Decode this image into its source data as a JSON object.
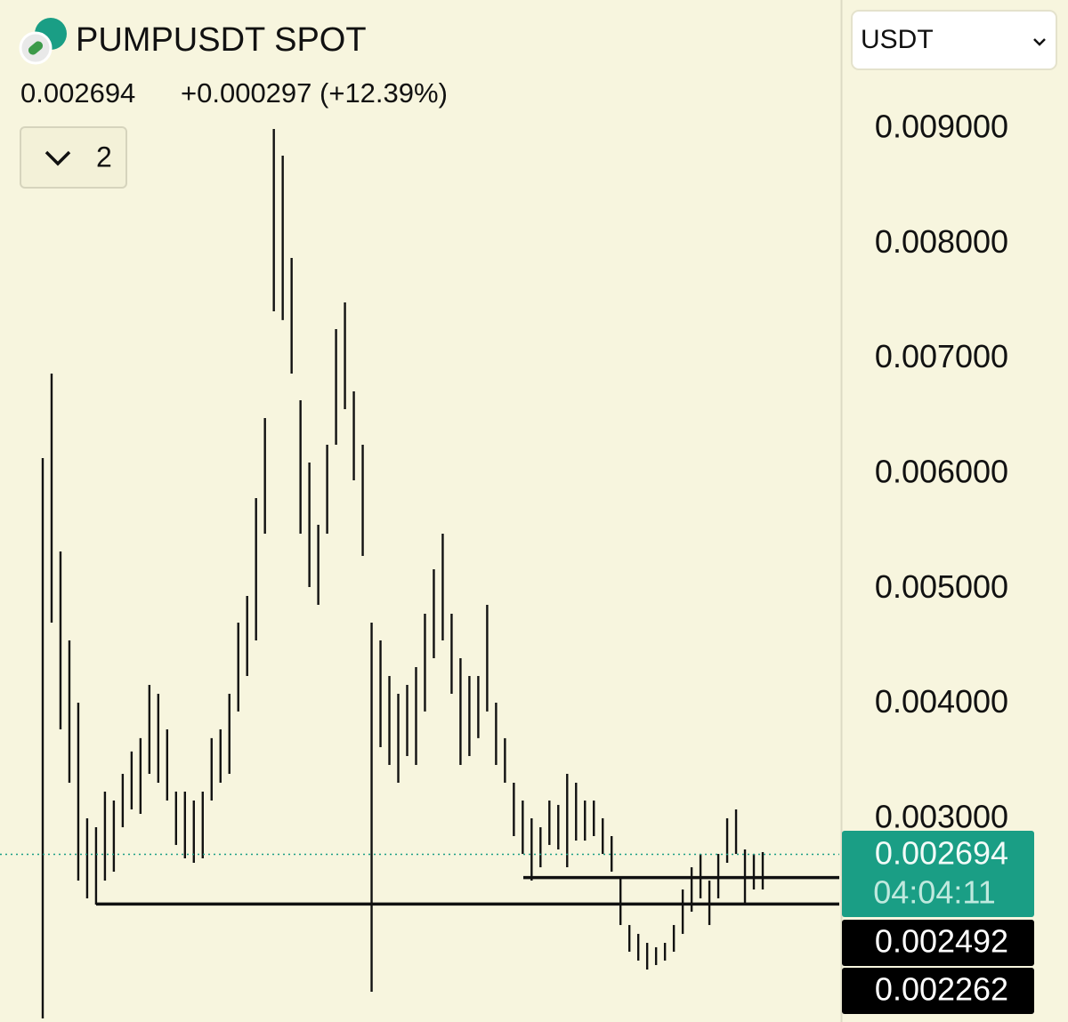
{
  "header": {
    "title": "PUMPUSDT SPOT",
    "change": "+0.000297 (+12.39%)",
    "indicator_count": "2",
    "currency": "USDT"
  },
  "chart_data": {
    "type": "ohlc",
    "highs": [
      0.006139,
      0.006874,
      0.005327,
      0.004554,
      0.004013,
      0.003008,
      0.00293,
      0.00324,
      0.003162,
      0.003394,
      0.003588,
      0.003704,
      0.004167,
      0.00409,
      0.003781,
      0.00324,
      0.00324,
      0.003162,
      0.00324,
      0.003704,
      0.003781,
      0.00409,
      0.004709,
      0.004941,
      0.005791,
      0.006487,
      0.009,
      0.008768,
      0.007879,
      0.006642,
      0.0061,
      0.005559,
      0.006255,
      0.00726,
      0.007492,
      0.006719,
      0.006255,
      0.004709,
      0.004554,
      0.004245,
      0.00409,
      0.004167,
      0.004322,
      0.004786,
      0.005173,
      0.005482,
      0.004786,
      0.004399,
      0.004245,
      0.004245,
      0.004863,
      0.004013,
      0.003704,
      0.003317,
      0.003162,
      0.003008,
      0.00293,
      0.003162,
      0.003124,
      0.003394,
      0.003317,
      0.003162,
      0.003162,
      0.003008,
      0.002853,
      0.002505,
      0.00208,
      0.002003,
      0.001925,
      0.001887,
      0.001925,
      0.00208,
      0.002389,
      0.002582,
      0.002698,
      0.002466,
      0.002698,
      0.003008,
      0.003085,
      0.002737,
      0.002698,
      0.002714
    ],
    "lows": [
      0.001268,
      0.004709,
      0.003781,
      0.003317,
      0.002466,
      0.002312,
      0.002258,
      0.002466,
      0.002544,
      0.00293,
      0.003085,
      0.003046,
      0.003394,
      0.003317,
      0.003162,
      0.002776,
      0.00266,
      0.002621,
      0.00266,
      0.003162,
      0.003317,
      0.003394,
      0.003936,
      0.004245,
      0.004554,
      0.005482,
      0.007415,
      0.007338,
      0.006874,
      0.005482,
      0.005018,
      0.004863,
      0.005482,
      0.006255,
      0.006564,
      0.005946,
      0.005289,
      0.0015,
      0.003626,
      0.003472,
      0.003317,
      0.003549,
      0.003472,
      0.003936,
      0.004399,
      0.004554,
      0.00409,
      0.003472,
      0.003549,
      0.003704,
      0.003936,
      0.003472,
      0.003317,
      0.002853,
      0.002698,
      0.002466,
      0.002582,
      0.002776,
      0.002737,
      0.002582,
      0.002814,
      0.002814,
      0.002853,
      0.002698,
      0.002544,
      0.00208,
      0.001848,
      0.001771,
      0.001693,
      0.001732,
      0.001771,
      0.001848,
      0.002003,
      0.002196,
      0.002312,
      0.00208,
      0.002312,
      0.002621,
      0.002698,
      0.002273,
      0.002389,
      0.002389
    ],
    "color": "#111111",
    "ylim": [
      0.001237,
      0.010121
    ],
    "yticks": [
      {
        "value": 0.003,
        "label": "0.003000"
      },
      {
        "value": 0.004,
        "label": "0.004000"
      },
      {
        "value": 0.005,
        "label": "0.005000"
      },
      {
        "value": 0.006,
        "label": "0.006000"
      },
      {
        "value": 0.007,
        "label": "0.007000"
      },
      {
        "value": 0.008,
        "label": "0.008000"
      },
      {
        "value": 0.009,
        "label": "0.009000"
      }
    ],
    "last_price": 0.002694,
    "last_price_color": "#1a9e85",
    "countdown": "04:04:11",
    "levels": [
      0.002492,
      0.002262
    ]
  }
}
